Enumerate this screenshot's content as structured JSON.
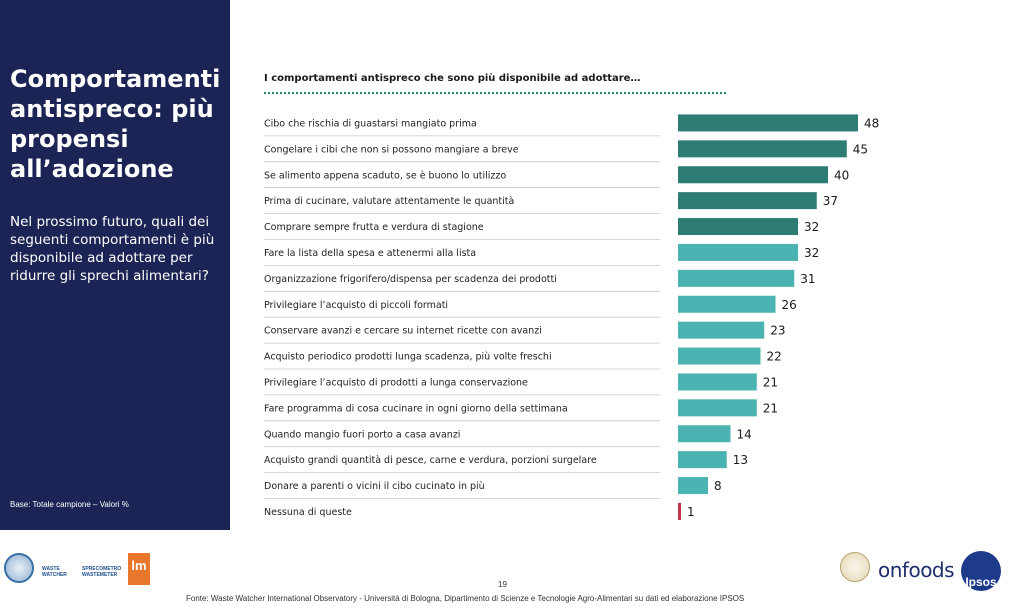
{
  "sidebar": {
    "title": "Comportamenti antispreco: più propensi all’adozione",
    "question": "Nel prossimo futuro, quali dei seguenti comportamenti è più disponibile ad adottare per ridurre gli sprechi alimentari?",
    "base": "Base: Totale campione – Valori %"
  },
  "chart_data": {
    "type": "bar",
    "orientation": "horizontal",
    "title": "I comportamenti antispreco che sono più disponibile ad adottare…",
    "categories": [
      "Cibo che rischia di guastarsi mangiato prima",
      "Congelare i cibi che non si possono mangiare a breve",
      "Se alimento appena scaduto, se è buono lo utilizzo",
      "Prima di cucinare, valutare attentamente le quantità",
      "Comprare sempre frutta e verdura di stagione",
      "Fare la lista della spesa e attenermi alla lista",
      "Organizzazione frigorifero/dispensa per scadenza dei prodotti",
      "Privilegiare l’acquisto di piccoli formati",
      "Conservare avanzi e cercare su internet ricette con avanzi",
      "Acquisto periodico prodotti lunga scadenza, più volte freschi",
      "Privilegiare l’acquisto di prodotti a lunga conservazione",
      "Fare programma di cosa cucinare in ogni giorno della settimana",
      "Quando mangio fuori porto a casa avanzi",
      "Acquisto grandi quantità di pesce, carne e verdura, porzioni surgelare",
      "Donare a parenti o vicini il cibo cucinato in più",
      "Nessuna di queste"
    ],
    "values": [
      48,
      45,
      40,
      37,
      32,
      32,
      31,
      26,
      23,
      22,
      21,
      21,
      14,
      13,
      8,
      1
    ],
    "colors": {
      "dark": "#2e7d74",
      "light": "#4bb3b1",
      "none": "#c0344d"
    },
    "xlim": [
      0,
      50
    ],
    "grid": false,
    "legend": "none"
  },
  "footer": {
    "page_number": "19",
    "source": "Fonte: Waste Watcher International Observatory - Università di Bologna, Dipartimento di Scienze e Tecnologie Agro-Alimentari su dati ed elaborazione IPSOS"
  },
  "logos": {
    "waste_watcher": "WASTE WATCHER",
    "spreco_waste": "SPRECOMETRO WASTEMETER",
    "lm": "lm",
    "onfoods": "onfoods",
    "ipsos": "Ipsos"
  }
}
